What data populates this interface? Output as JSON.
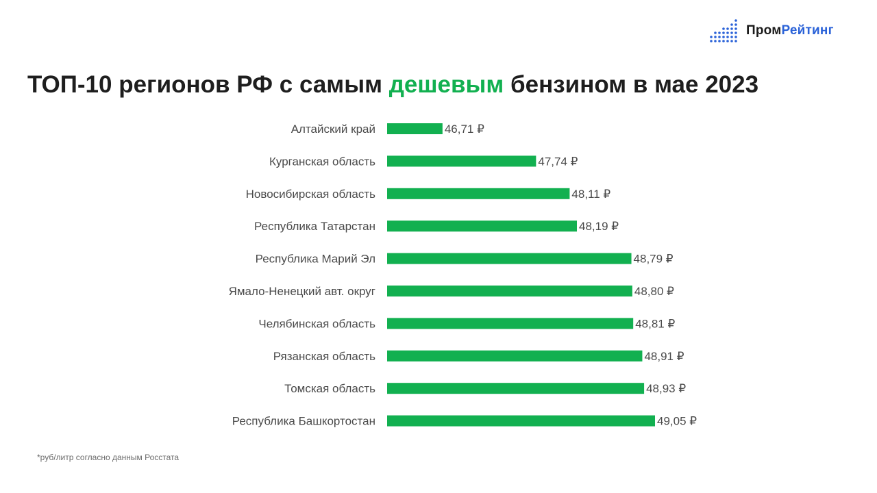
{
  "brand": {
    "part1": "Пром",
    "part2": "Рейтинг",
    "icon": "bar-dots-logo-icon",
    "color_dark": "#1b1b1b",
    "color_blue": "#2a62d8"
  },
  "title": {
    "before": "ТОП-10 регионов РФ с самым ",
    "highlight": "дешевым",
    "after": " бензином в мае 2023",
    "highlight_color": "#12b050"
  },
  "footnote": "*руб/литр согласно данным Росстата",
  "colors": {
    "bar": "#12b050",
    "label": "#4a4a4a"
  },
  "chart_data": {
    "type": "bar",
    "orientation": "horizontal",
    "categories": [
      "Алтайский край",
      "Курганская область",
      "Новосибирская область",
      "Республика Татарстан",
      "Республика Марий Эл",
      "Ямало-Ненецкий авт. округ",
      "Челябинская область",
      "Рязанская область",
      "Томская область",
      "Республика Башкортостан"
    ],
    "values": [
      46.71,
      47.74,
      48.11,
      48.19,
      48.79,
      48.8,
      48.81,
      48.91,
      48.93,
      49.05
    ],
    "value_labels": [
      "46,71 ₽",
      "47,74 ₽",
      "48,11 ₽",
      "48,19 ₽",
      "48,79 ₽",
      "48,80 ₽",
      "48,81 ₽",
      "48,91 ₽",
      "48,93 ₽",
      "49,05 ₽"
    ],
    "xlim": [
      46.1,
      49.05
    ],
    "grid": false,
    "legend": "none"
  }
}
